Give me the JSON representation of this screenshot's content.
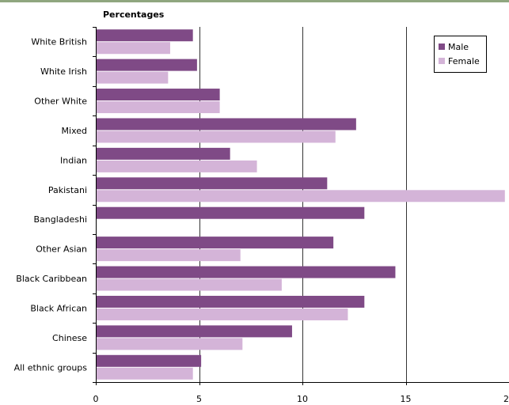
{
  "chart_data": {
    "type": "bar",
    "orientation": "horizontal",
    "title": "Percentages",
    "categories": [
      "White British",
      "White Irish",
      "Other White",
      "Mixed",
      "Indian",
      "Pakistani",
      "Bangladeshi",
      "Other Asian",
      "Black Caribbean",
      "Black African",
      "Chinese",
      "All ethnic groups"
    ],
    "series": [
      {
        "name": "Male",
        "color": "#7f4a86",
        "values": [
          4.7,
          4.9,
          6.0,
          12.6,
          6.5,
          11.2,
          13.0,
          11.5,
          14.5,
          13.0,
          9.5,
          5.1
        ]
      },
      {
        "name": "Female",
        "color": "#d4b4d8",
        "values": [
          3.6,
          3.5,
          6.0,
          11.6,
          7.8,
          19.8,
          null,
          7.0,
          9.0,
          12.2,
          7.1,
          4.7
        ]
      }
    ],
    "xlim": [
      0,
      20
    ],
    "xticks": [
      "0",
      "5",
      "10",
      "15",
      "2"
    ],
    "grid": true,
    "legend_position": "top-right"
  }
}
